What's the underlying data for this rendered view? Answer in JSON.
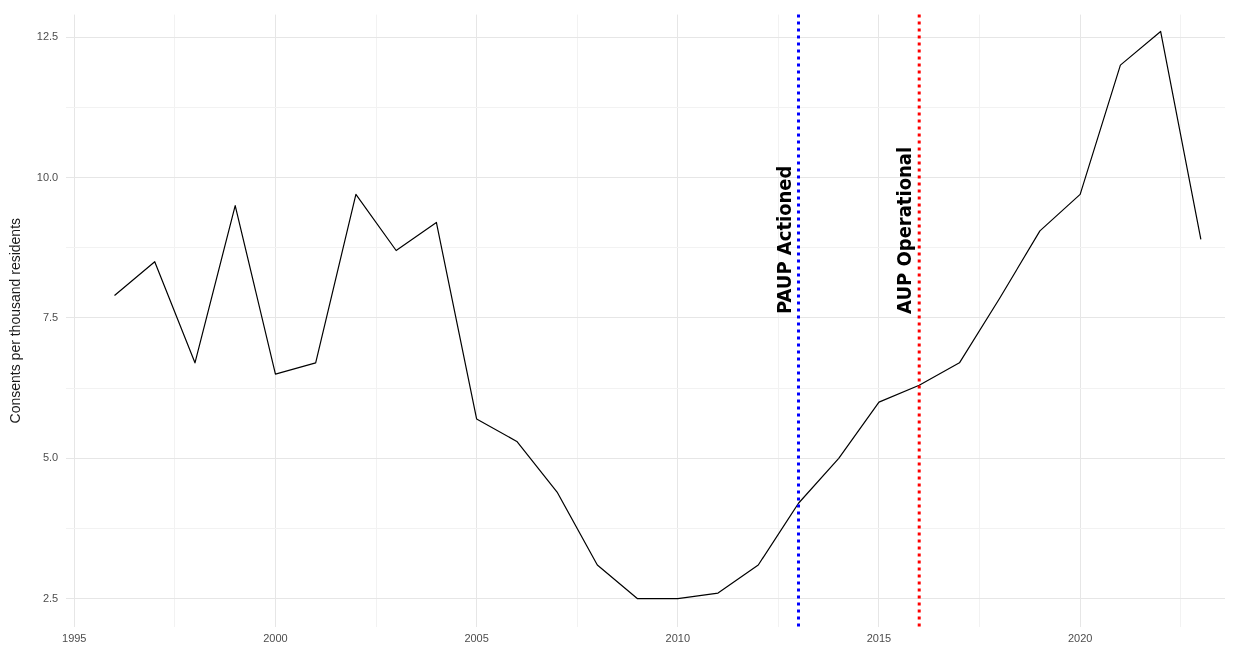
{
  "chart_data": {
    "type": "line",
    "ylabel": "Consents per thousand residents",
    "x": [
      1996,
      1997,
      1998,
      1999,
      2000,
      2001,
      2002,
      2003,
      2004,
      2005,
      2006,
      2007,
      2008,
      2009,
      2010,
      2011,
      2012,
      2013,
      2014,
      2015,
      2016,
      2017,
      2018,
      2019,
      2020,
      2021,
      2022,
      2023
    ],
    "series": [
      {
        "color": "#000000",
        "values": [
          7.9,
          8.5,
          6.7,
          9.5,
          6.5,
          6.7,
          9.7,
          8.7,
          9.2,
          5.7,
          5.3,
          4.4,
          3.1,
          2.5,
          2.5,
          2.6,
          3.1,
          4.2,
          5.0,
          6.0,
          6.3,
          6.7,
          7.85,
          9.05,
          9.7,
          12.0,
          12.6,
          8.9
        ]
      }
    ],
    "xlim": [
      1994.8,
      2023.6
    ],
    "ylim": [
      2.0,
      12.9
    ],
    "xticks": [
      1995,
      {
        "value": 1997.5,
        "label": null
      },
      2000,
      {
        "value": 2002.5,
        "label": null
      },
      2005,
      {
        "value": 2007.5,
        "label": null
      },
      2010,
      {
        "value": 2012.5,
        "label": null
      },
      2015,
      {
        "value": 2017.5,
        "label": null
      },
      2020,
      {
        "value": 2022.5,
        "label": null
      }
    ],
    "yticks": [
      2.5,
      {
        "value": 3.75,
        "label": null
      },
      {
        "value": 5,
        "label": "5.0"
      },
      {
        "value": 6.25,
        "label": null
      },
      7.5,
      {
        "value": 8.75,
        "label": null
      },
      {
        "value": 10,
        "label": "10.0"
      },
      {
        "value": 11.25,
        "label": null
      },
      12.5
    ],
    "ref_lines": [
      {
        "axis": "x",
        "value": 2013,
        "label": "PAUP Actioned",
        "color": "#0000ff",
        "line_style": "dotted"
      },
      {
        "axis": "x",
        "value": 2016,
        "label": "AUP Operational",
        "color": "#ff0000",
        "line_style": "dotted"
      }
    ],
    "grid": true,
    "legend": false,
    "marker": "none",
    "line_style": "solid"
  }
}
